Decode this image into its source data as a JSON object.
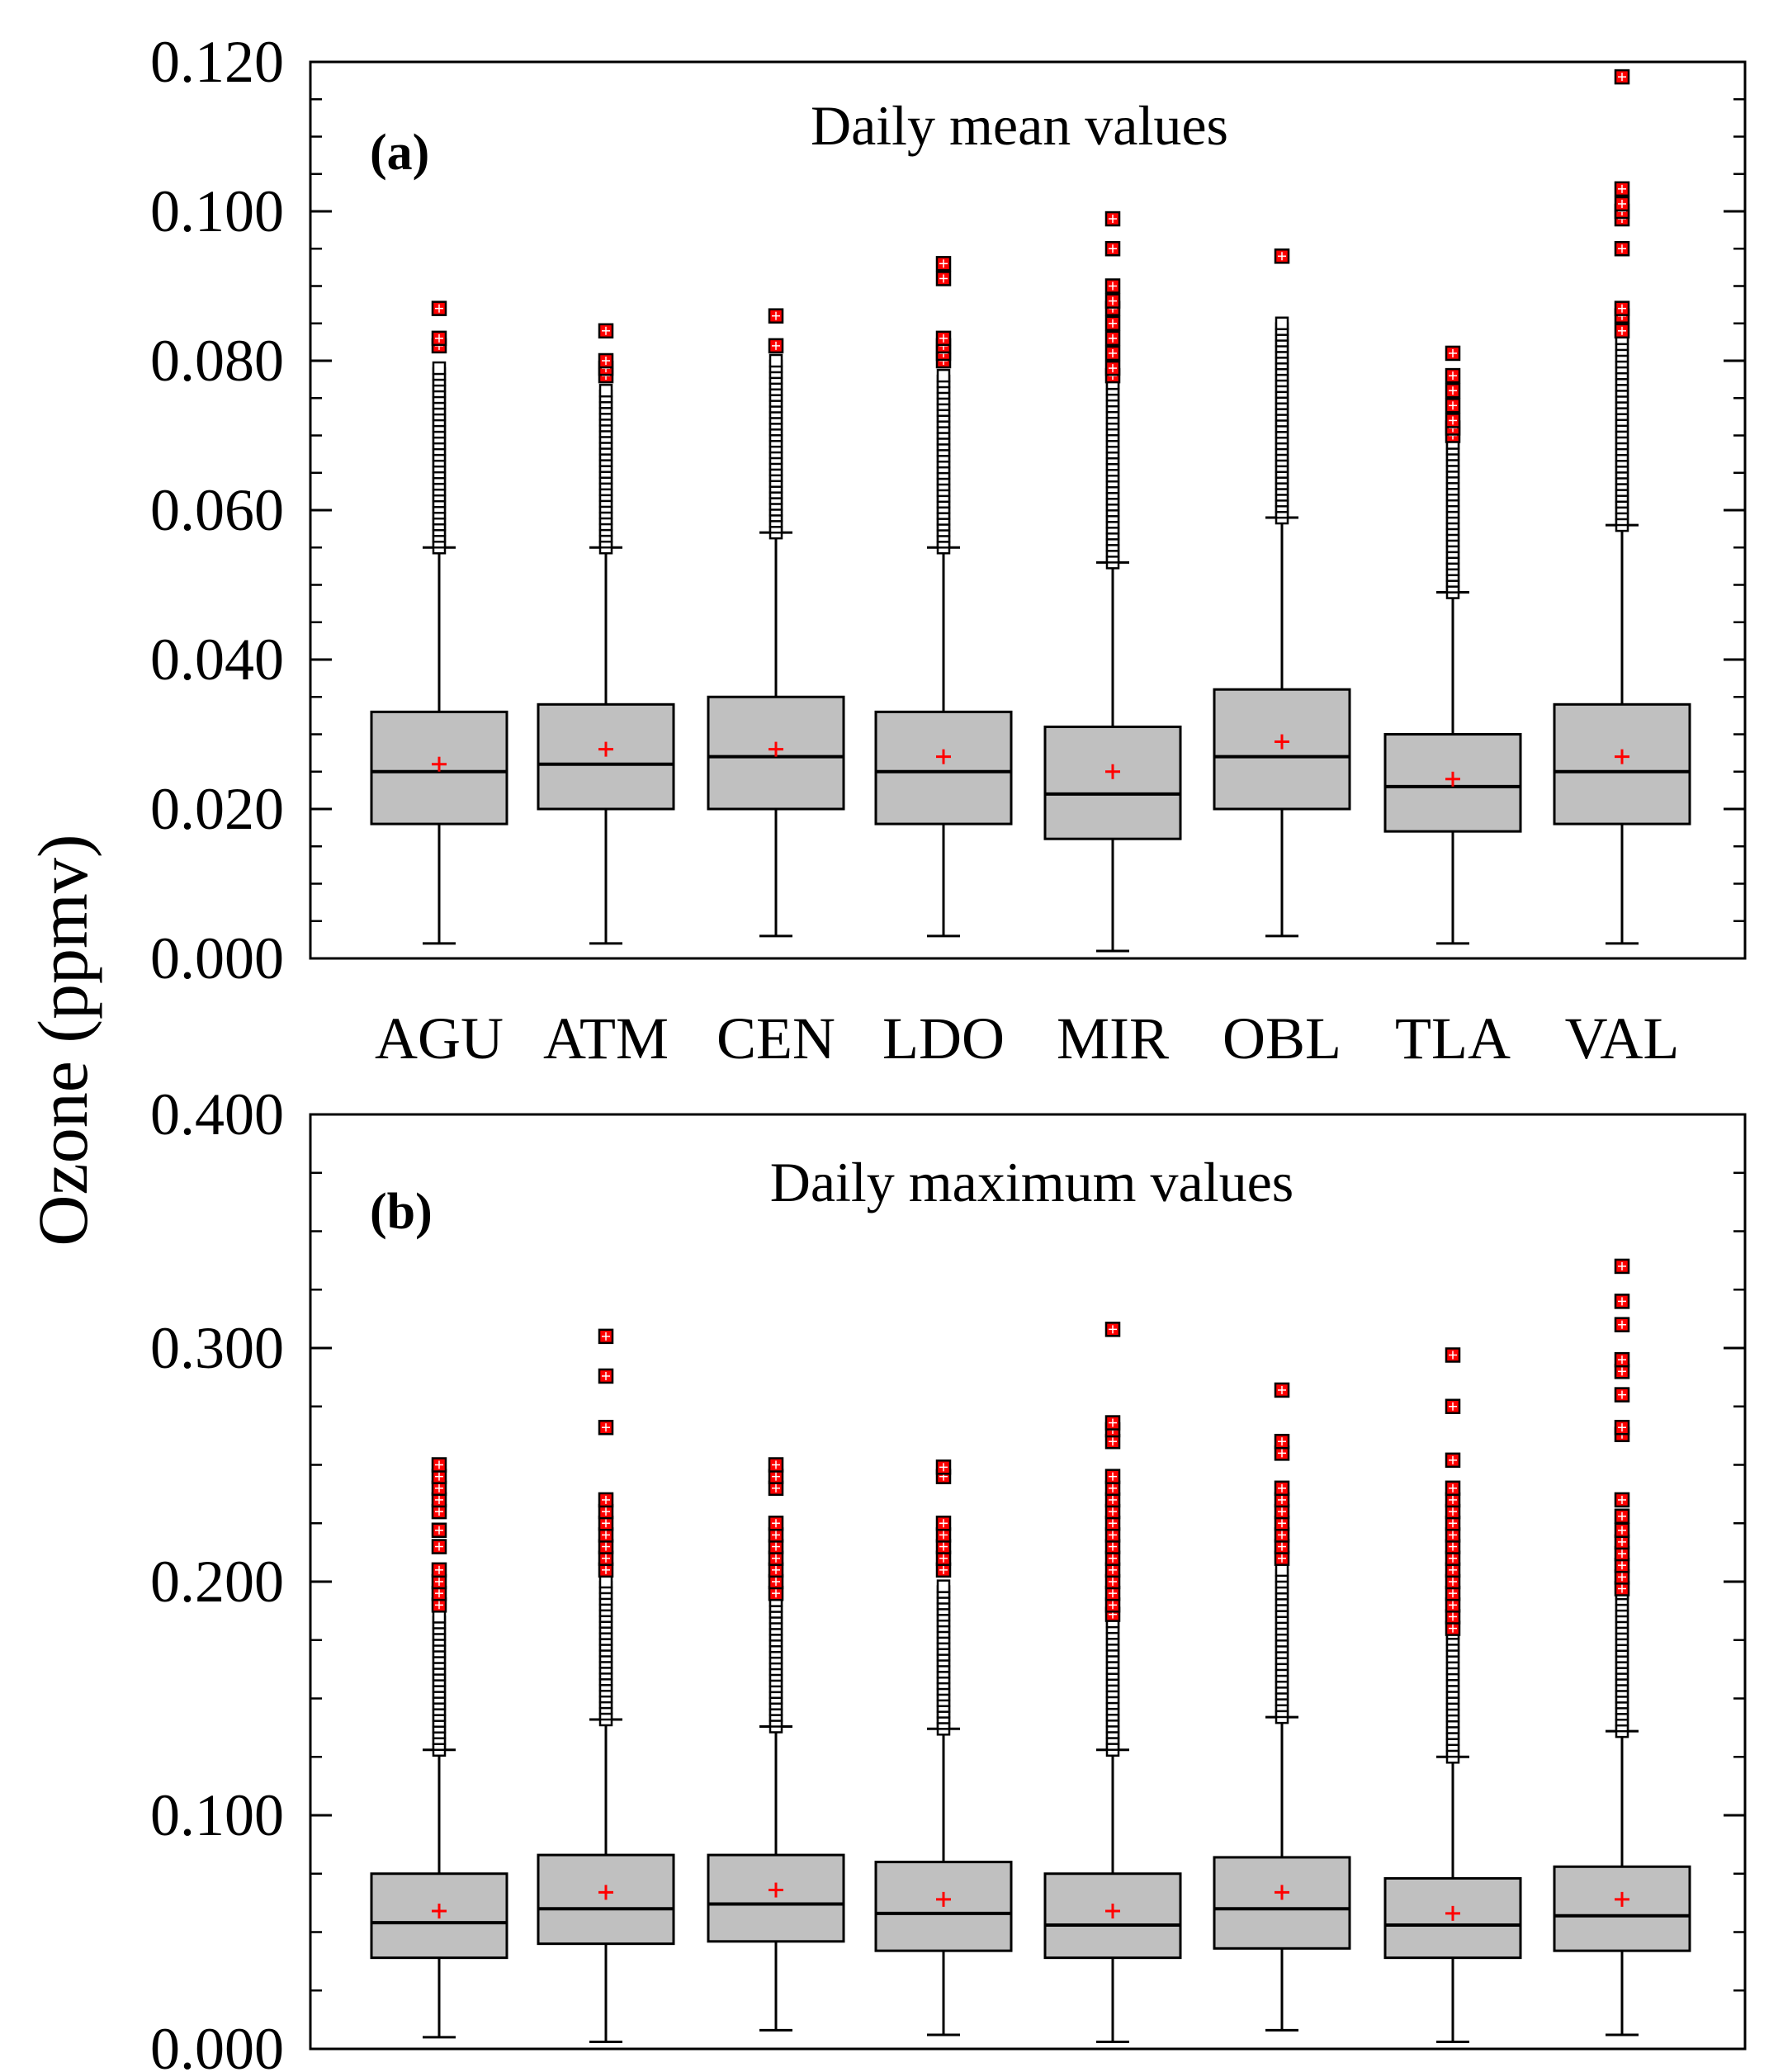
{
  "ylabel": "Ozone (ppmv)",
  "categories": [
    "AGU",
    "ATM",
    "CEN",
    "LDO",
    "MIR",
    "OBL",
    "TLA",
    "VAL"
  ],
  "colors": {
    "box_fill": "#c0c0c0",
    "mean_marker": "#ff0000",
    "outlier_fill": "#ff0000",
    "outlier_edge": "#000000",
    "line": "#000000"
  },
  "chart_data": [
    {
      "type": "boxplot",
      "panel": "(a)",
      "title": "Daily mean values",
      "ylim": [
        0.0,
        0.12
      ],
      "yticks": [
        "0.000",
        "0.020",
        "0.040",
        "0.060",
        "0.080",
        "0.100",
        "0.120"
      ],
      "categories": [
        "AGU",
        "ATM",
        "CEN",
        "LDO",
        "MIR",
        "OBL",
        "TLA",
        "VAL"
      ],
      "series": [
        {
          "name": "AGU",
          "whisker_low": 0.002,
          "q1": 0.018,
          "median": 0.025,
          "q3": 0.033,
          "whisker_high": 0.055,
          "mean": 0.026,
          "outlier_range": [
            0.055,
            0.079
          ],
          "extreme_outliers": [
            0.082,
            0.083,
            0.087
          ]
        },
        {
          "name": "ATM",
          "whisker_low": 0.002,
          "q1": 0.02,
          "median": 0.026,
          "q3": 0.034,
          "whisker_high": 0.055,
          "mean": 0.028,
          "outlier_range": [
            0.055,
            0.076
          ],
          "extreme_outliers": [
            0.078,
            0.079,
            0.08,
            0.084
          ]
        },
        {
          "name": "CEN",
          "whisker_low": 0.003,
          "q1": 0.02,
          "median": 0.027,
          "q3": 0.035,
          "whisker_high": 0.057,
          "mean": 0.028,
          "outlier_range": [
            0.057,
            0.08
          ],
          "extreme_outliers": [
            0.082,
            0.086
          ]
        },
        {
          "name": "LDO",
          "whisker_low": 0.003,
          "q1": 0.018,
          "median": 0.025,
          "q3": 0.033,
          "whisker_high": 0.055,
          "mean": 0.027,
          "outlier_range": [
            0.055,
            0.078
          ],
          "extreme_outliers": [
            0.08,
            0.081,
            0.082,
            0.083,
            0.091,
            0.093
          ]
        },
        {
          "name": "MIR",
          "whisker_low": 0.001,
          "q1": 0.016,
          "median": 0.022,
          "q3": 0.031,
          "whisker_high": 0.053,
          "mean": 0.025,
          "outlier_range": [
            0.053,
            0.077
          ],
          "extreme_outliers": [
            0.078,
            0.079,
            0.081,
            0.083,
            0.085,
            0.087,
            0.088,
            0.09,
            0.095,
            0.099
          ]
        },
        {
          "name": "OBL",
          "whisker_low": 0.003,
          "q1": 0.02,
          "median": 0.027,
          "q3": 0.036,
          "whisker_high": 0.059,
          "mean": 0.029,
          "outlier_range": [
            0.059,
            0.085
          ],
          "extreme_outliers": [
            0.094
          ]
        },
        {
          "name": "TLA",
          "whisker_low": 0.002,
          "q1": 0.017,
          "median": 0.023,
          "q3": 0.03,
          "whisker_high": 0.049,
          "mean": 0.024,
          "outlier_range": [
            0.049,
            0.069
          ],
          "extreme_outliers": [
            0.07,
            0.071,
            0.072,
            0.074,
            0.076,
            0.078,
            0.081
          ]
        },
        {
          "name": "VAL",
          "whisker_low": 0.002,
          "q1": 0.018,
          "median": 0.025,
          "q3": 0.034,
          "whisker_high": 0.058,
          "mean": 0.027,
          "outlier_range": [
            0.058,
            0.083
          ],
          "extreme_outliers": [
            0.084,
            0.086,
            0.087,
            0.095,
            0.099,
            0.1,
            0.101,
            0.103,
            0.118
          ]
        }
      ]
    },
    {
      "type": "boxplot",
      "panel": "(b)",
      "title": "Daily maximum values",
      "ylim": [
        0.0,
        0.4
      ],
      "yticks": [
        "0.000",
        "0.100",
        "0.200",
        "0.300",
        "0.400"
      ],
      "categories": [
        "AGU",
        "ATM",
        "CEN",
        "LDO",
        "MIR",
        "OBL",
        "TLA",
        "VAL"
      ],
      "series": [
        {
          "name": "AGU",
          "whisker_low": 0.005,
          "q1": 0.039,
          "median": 0.054,
          "q3": 0.075,
          "whisker_high": 0.128,
          "mean": 0.059,
          "outlier_range": [
            0.128,
            0.185
          ],
          "extreme_outliers": [
            0.19,
            0.195,
            0.2,
            0.205,
            0.215,
            0.222,
            0.23,
            0.235,
            0.24,
            0.245,
            0.25
          ]
        },
        {
          "name": "ATM",
          "whisker_low": 0.003,
          "q1": 0.045,
          "median": 0.06,
          "q3": 0.083,
          "whisker_high": 0.141,
          "mean": 0.067,
          "outlier_range": [
            0.141,
            0.2
          ],
          "extreme_outliers": [
            0.205,
            0.21,
            0.215,
            0.22,
            0.225,
            0.23,
            0.235,
            0.266,
            0.288,
            0.305
          ]
        },
        {
          "name": "CEN",
          "whisker_low": 0.008,
          "q1": 0.046,
          "median": 0.062,
          "q3": 0.083,
          "whisker_high": 0.138,
          "mean": 0.068,
          "outlier_range": [
            0.138,
            0.192
          ],
          "extreme_outliers": [
            0.195,
            0.2,
            0.205,
            0.21,
            0.215,
            0.22,
            0.225,
            0.24,
            0.245,
            0.25
          ]
        },
        {
          "name": "LDO",
          "whisker_low": 0.006,
          "q1": 0.042,
          "median": 0.058,
          "q3": 0.08,
          "whisker_high": 0.137,
          "mean": 0.064,
          "outlier_range": [
            0.137,
            0.198
          ],
          "extreme_outliers": [
            0.205,
            0.21,
            0.215,
            0.22,
            0.225,
            0.245,
            0.249
          ]
        },
        {
          "name": "MIR",
          "whisker_low": 0.003,
          "q1": 0.039,
          "median": 0.053,
          "q3": 0.075,
          "whisker_high": 0.128,
          "mean": 0.059,
          "outlier_range": [
            0.128,
            0.183
          ],
          "extreme_outliers": [
            0.186,
            0.19,
            0.195,
            0.2,
            0.205,
            0.21,
            0.215,
            0.22,
            0.225,
            0.23,
            0.235,
            0.24,
            0.245,
            0.26,
            0.265,
            0.268,
            0.308
          ]
        },
        {
          "name": "OBL",
          "whisker_low": 0.008,
          "q1": 0.043,
          "median": 0.06,
          "q3": 0.082,
          "whisker_high": 0.142,
          "mean": 0.067,
          "outlier_range": [
            0.142,
            0.205
          ],
          "extreme_outliers": [
            0.21,
            0.215,
            0.22,
            0.225,
            0.23,
            0.235,
            0.24,
            0.255,
            0.26,
            0.282
          ]
        },
        {
          "name": "TLA",
          "whisker_low": 0.003,
          "q1": 0.039,
          "median": 0.053,
          "q3": 0.073,
          "whisker_high": 0.125,
          "mean": 0.058,
          "outlier_range": [
            0.125,
            0.178
          ],
          "extreme_outliers": [
            0.18,
            0.185,
            0.19,
            0.195,
            0.2,
            0.205,
            0.21,
            0.215,
            0.22,
            0.225,
            0.23,
            0.235,
            0.24,
            0.252,
            0.275,
            0.297
          ]
        },
        {
          "name": "VAL",
          "whisker_low": 0.006,
          "q1": 0.042,
          "median": 0.057,
          "q3": 0.078,
          "whisker_high": 0.136,
          "mean": 0.064,
          "outlier_range": [
            0.136,
            0.195
          ],
          "extreme_outliers": [
            0.197,
            0.202,
            0.207,
            0.212,
            0.217,
            0.222,
            0.228,
            0.235,
            0.263,
            0.266,
            0.28,
            0.29,
            0.295,
            0.31,
            0.32,
            0.335
          ]
        }
      ]
    }
  ]
}
